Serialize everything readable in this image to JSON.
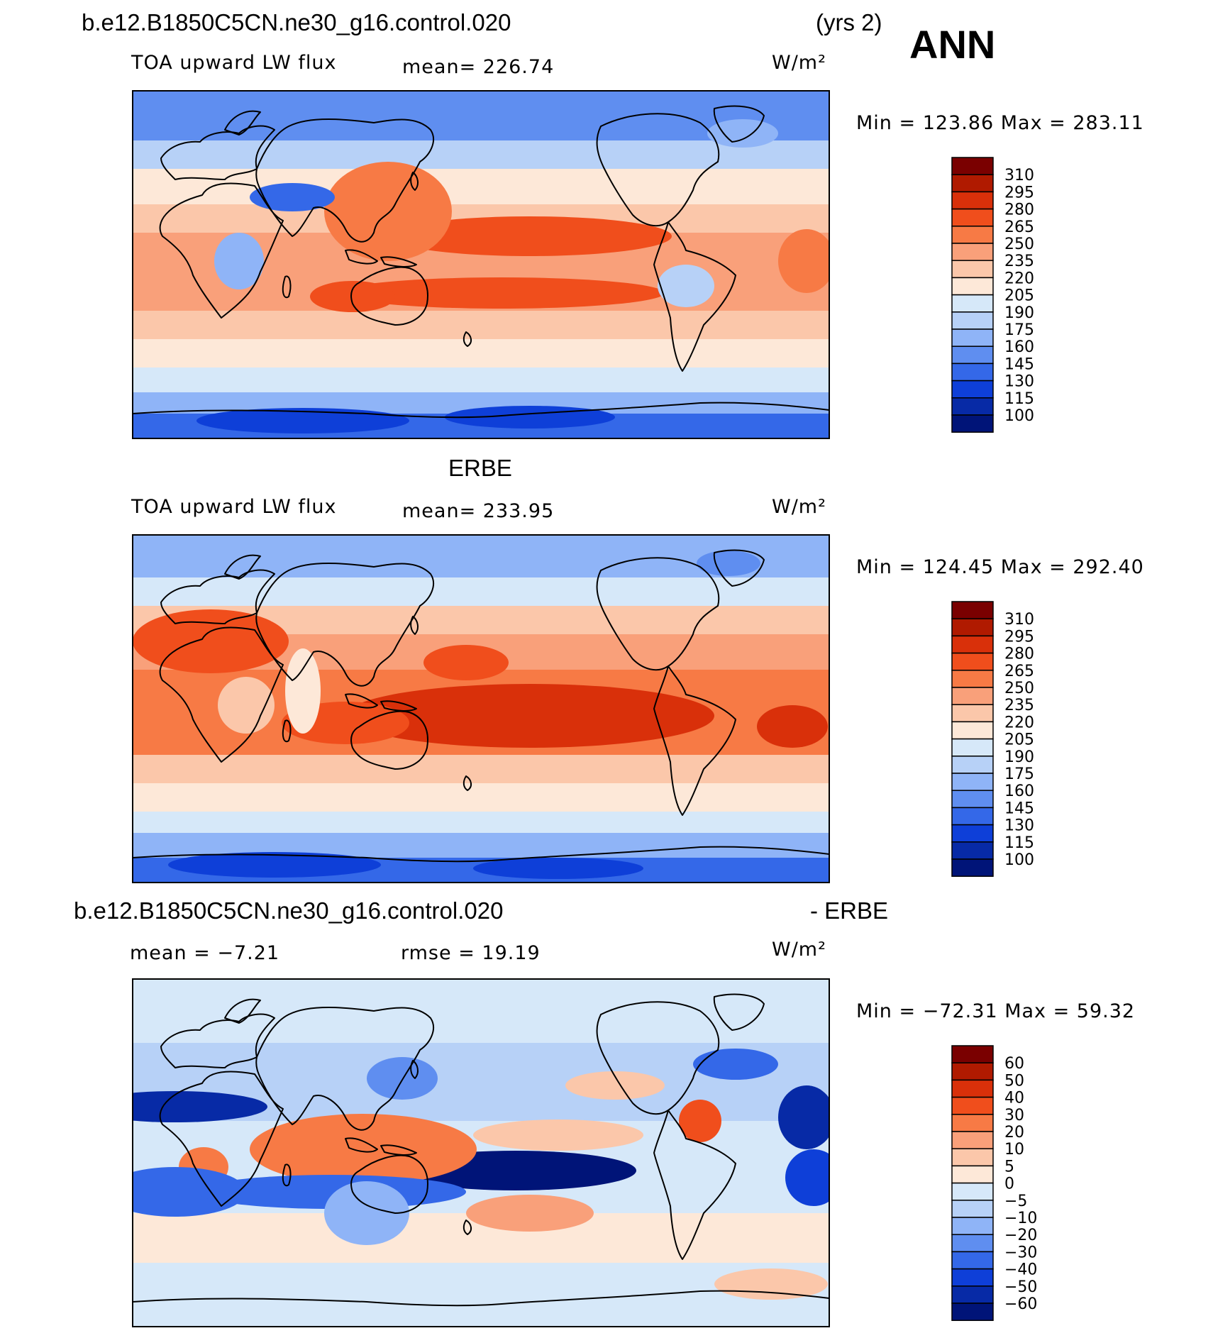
{
  "header": {
    "case_name": "b.e12.B1850C5CN.ne30_g16.control.020",
    "years": "(yrs 2)",
    "season": "ANN"
  },
  "units": "W/m²",
  "panels": [
    {
      "id": "model",
      "heading": "",
      "left_label": "TOA upward LW flux",
      "stat_label": "mean= 226.74",
      "minmax_label": "Min = 123.86 Max = 283.11",
      "field": "model",
      "colorbar": "abs"
    },
    {
      "id": "obs",
      "heading": "ERBE",
      "left_label": "TOA upward LW flux",
      "stat_label": "mean= 233.95",
      "minmax_label": "Min = 124.45 Max = 292.40",
      "field": "obs",
      "colorbar": "abs"
    },
    {
      "id": "diff",
      "heading_left": "b.e12.B1850C5CN.ne30_g16.control.020",
      "heading_right": "- ERBE",
      "left_label": "mean = −7.21",
      "stat_label": "rmse = 19.19",
      "minmax_label": "Min = −72.31 Max = 59.32",
      "field": "diff",
      "colorbar": "diff"
    }
  ],
  "colorbars": {
    "abs": {
      "levels": [
        "310",
        "295",
        "280",
        "265",
        "250",
        "235",
        "220",
        "205",
        "190",
        "175",
        "160",
        "145",
        "130",
        "115",
        "100"
      ],
      "colors": [
        "#7a0000",
        "#b01a00",
        "#d9300a",
        "#f04e1c",
        "#f77a45",
        "#f9a07a",
        "#fbc7aa",
        "#fde8d8",
        "#d6e8f9",
        "#b7d1f7",
        "#8fb4f7",
        "#5f8ef0",
        "#3468e8",
        "#0e3fd8",
        "#072aa6",
        "#001478"
      ]
    },
    "diff": {
      "levels": [
        "60",
        "50",
        "40",
        "30",
        "20",
        "10",
        "5",
        "0",
        "−5",
        "−10",
        "−20",
        "−30",
        "−40",
        "−50",
        "−60"
      ],
      "colors": [
        "#7a0000",
        "#b01a00",
        "#d9300a",
        "#f04e1c",
        "#f77a45",
        "#f9a07a",
        "#fbc7aa",
        "#fde8d8",
        "#d6e8f9",
        "#b7d1f7",
        "#8fb4f7",
        "#5f8ef0",
        "#3468e8",
        "#0e3fd8",
        "#072aa6",
        "#001478"
      ]
    }
  }
}
